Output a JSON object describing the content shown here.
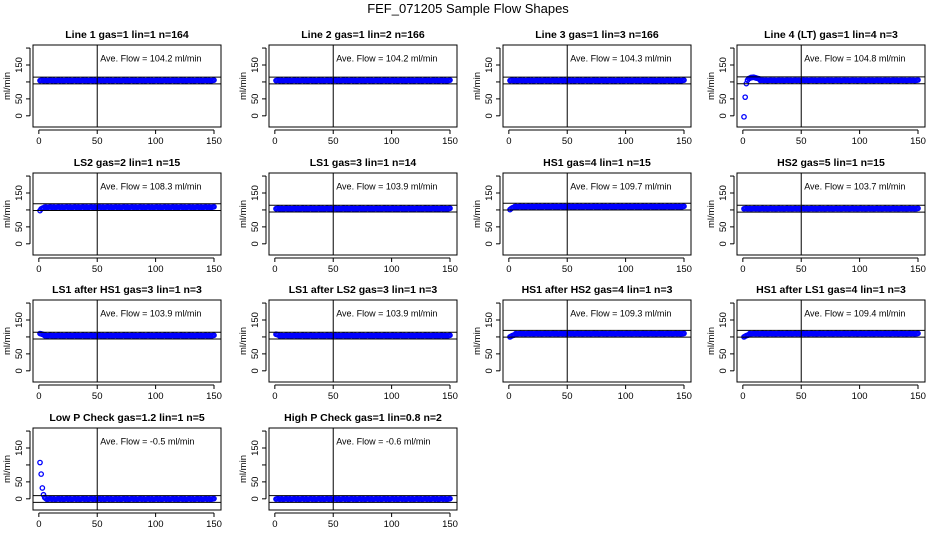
{
  "main_title": "FEF_071205  Sample Flow Shapes",
  "colors": {
    "points": "#0000ff",
    "axes": "#000000"
  },
  "chart_data": {
    "type": "scatter",
    "grid": false,
    "ylabel": "ml/min",
    "xlim": [
      -5,
      156
    ],
    "ylim": [
      -33,
      209
    ],
    "x_ticks": [
      "0",
      "50",
      "100",
      "150"
    ],
    "y_ticks": [
      "0",
      "50",
      "",
      "150"
    ],
    "y_tick_values": [
      0,
      50,
      100,
      150,
      200
    ],
    "x_tick_values": [
      0,
      50,
      100,
      150
    ],
    "vertical_reference_x": 50,
    "reference_band_halfwidth": 10,
    "panels": [
      {
        "title": "Line 1 gas=1 lin=1 n=164",
        "annotation": "Ave. Flow =  104.2  ml/min",
        "ave": 104.2,
        "steady": 104.2,
        "start": []
      },
      {
        "title": "Line 2 gas=1 lin=2 n=166",
        "annotation": "Ave. Flow =  104.2  ml/min",
        "ave": 104.2,
        "steady": 104.2,
        "start": []
      },
      {
        "title": "Line 3 gas=1 lin=3 n=166",
        "annotation": "Ave. Flow =  104.3  ml/min",
        "ave": 104.3,
        "steady": 104.3,
        "start": []
      },
      {
        "title": "Line 4 (LT) gas=1 lin=4 n=3",
        "annotation": "Ave. Flow =  104.8  ml/min",
        "ave": 104.8,
        "steady": 104.8,
        "start": [
          [
            1,
            -3
          ],
          [
            2,
            55
          ],
          [
            3,
            95
          ],
          [
            4,
            105
          ],
          [
            5,
            110
          ],
          [
            6,
            111
          ],
          [
            7,
            113
          ],
          [
            8,
            113
          ],
          [
            9,
            114
          ],
          [
            10,
            113
          ],
          [
            11,
            112
          ],
          [
            12,
            111
          ],
          [
            13,
            110
          ],
          [
            14,
            109
          ]
        ]
      },
      {
        "title": "LS2 gas=2 lin=1 n=15",
        "annotation": "Ave. Flow =  108.3  ml/min",
        "ave": 108.3,
        "steady": 108.3,
        "start": [
          [
            1,
            98
          ],
          [
            2,
            103
          ],
          [
            3,
            105
          ],
          [
            4,
            106
          ]
        ]
      },
      {
        "title": "LS1 gas=3 lin=1 n=14",
        "annotation": "Ave. Flow =  103.9  ml/min",
        "ave": 103.9,
        "steady": 103.9,
        "start": []
      },
      {
        "title": "HS1 gas=4 lin=1 n=15",
        "annotation": "Ave. Flow =  109.7  ml/min",
        "ave": 109.7,
        "steady": 109.7,
        "start": [
          [
            1,
            101
          ],
          [
            2,
            104
          ],
          [
            3,
            106
          ],
          [
            4,
            107
          ]
        ]
      },
      {
        "title": "HS2 gas=5 lin=1 n=15",
        "annotation": "Ave. Flow =  103.7  ml/min",
        "ave": 103.7,
        "steady": 103.7,
        "start": []
      },
      {
        "title": "LS1 after HS1 gas=3 lin=1 n=3",
        "annotation": "Ave. Flow =  103.9  ml/min",
        "ave": 103.9,
        "steady": 103.9,
        "start": [
          [
            1,
            110
          ],
          [
            2,
            109
          ],
          [
            3,
            108
          ],
          [
            4,
            107
          ]
        ]
      },
      {
        "title": "LS1 after LS2 gas=3 lin=1 n=3",
        "annotation": "Ave. Flow =  103.9  ml/min",
        "ave": 103.9,
        "steady": 103.9,
        "start": [
          [
            1,
            108
          ],
          [
            2,
            107
          ],
          [
            3,
            106
          ]
        ]
      },
      {
        "title": "HS1 after HS2 gas=4 lin=1 n=3",
        "annotation": "Ave. Flow =  109.3  ml/min",
        "ave": 109.3,
        "steady": 109.3,
        "start": [
          [
            1,
            100
          ],
          [
            2,
            102
          ],
          [
            3,
            104
          ],
          [
            4,
            105
          ],
          [
            5,
            106
          ]
        ]
      },
      {
        "title": "HS1 after LS1 gas=4 lin=1 n=3",
        "annotation": "Ave. Flow =  109.4  ml/min",
        "ave": 109.4,
        "steady": 109.4,
        "start": [
          [
            1,
            100
          ],
          [
            2,
            102
          ],
          [
            3,
            104
          ],
          [
            4,
            105
          ],
          [
            5,
            106
          ]
        ]
      },
      {
        "title": "Low P Check gas=1.2 lin=1 n=5",
        "annotation": "Ave. Flow =  -0.5  ml/min",
        "ave": -0.5,
        "steady": -0.5,
        "start": [
          [
            1,
            107
          ],
          [
            2,
            73
          ],
          [
            3,
            32
          ],
          [
            4,
            12
          ],
          [
            5,
            4
          ],
          [
            6,
            1
          ]
        ]
      },
      {
        "title": "High P Check gas=1 lin=0.8 n=2",
        "annotation": "Ave. Flow =  -0.6  ml/min",
        "ave": -0.6,
        "steady": -0.6,
        "start": []
      }
    ]
  }
}
